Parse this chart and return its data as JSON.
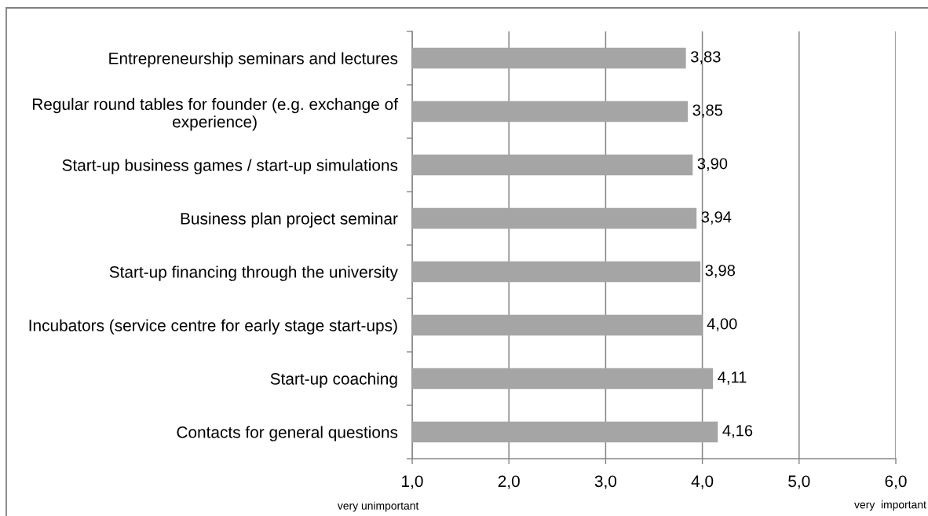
{
  "chart_data": {
    "type": "bar",
    "orientation": "horizontal",
    "categories": [
      "Entrepreneurship seminars and lectures",
      "Regular round tables for founder (e.g. exchange of experience)",
      "Start-up business games / start-up simulations",
      "Business plan project seminar",
      "Start-up financing through the university",
      "Incubators (service centre for early stage start-ups)",
      "Start-up coaching",
      "Contacts for general questions"
    ],
    "values": [
      3.83,
      3.85,
      3.9,
      3.94,
      3.98,
      4.0,
      4.11,
      4.16
    ],
    "color": "#a5a5a5",
    "value_labels": [
      "3,83",
      "3,85",
      "3,90",
      "3,94",
      "3,98",
      "4,00",
      "4,11",
      "4,16"
    ],
    "xlim": [
      1,
      6
    ],
    "xticks": [
      {
        "value": 1,
        "label": "1,0"
      },
      {
        "value": 2,
        "label": "2,0"
      },
      {
        "value": 3,
        "label": "3,0"
      },
      {
        "value": 4,
        "label": "4,0"
      },
      {
        "value": 5,
        "label": "5,0"
      },
      {
        "value": 6,
        "label": "6,0"
      }
    ],
    "grid": "x",
    "annotations": [
      "very unimportant",
      "very  important"
    ]
  }
}
